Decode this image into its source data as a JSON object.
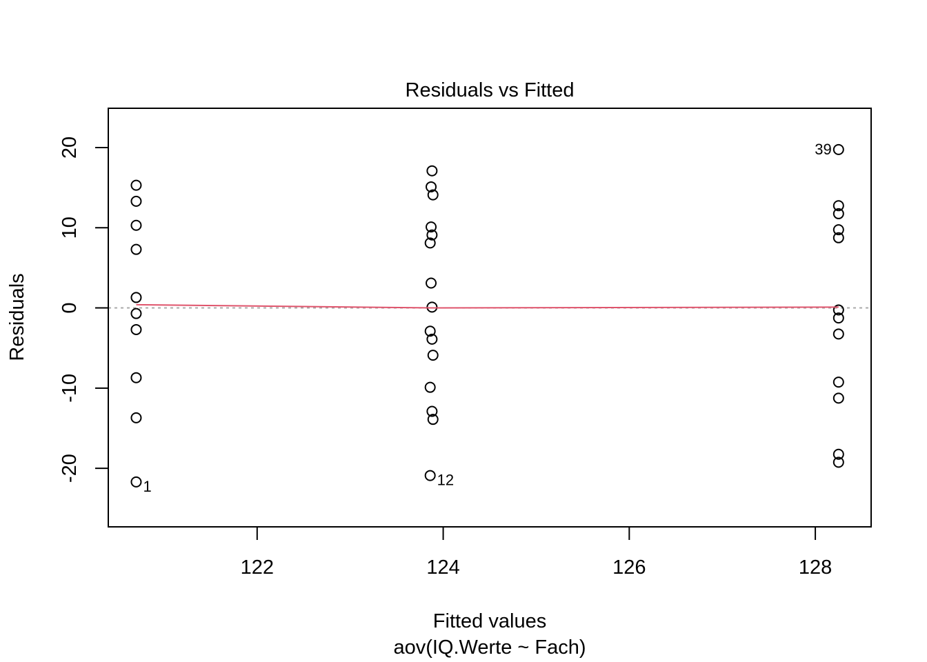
{
  "chart_data": {
    "type": "scatter",
    "title": "Residuals vs Fitted",
    "xlabel": "Fitted values",
    "subtitle": "aov(IQ.Werte ~ Fach)",
    "ylabel": "Residuals",
    "xlim": [
      120.4,
      128.6
    ],
    "ylim": [
      -27.3,
      24.9
    ],
    "xticks": [
      122,
      124,
      126,
      128
    ],
    "yticks": [
      -20,
      -10,
      0,
      10,
      20
    ],
    "grid": false,
    "reference_line_y": 0,
    "colors": {
      "points": "#000000",
      "smooth": "#DF536B",
      "refline": "#AAAAAA"
    },
    "points": [
      {
        "x": 120.7,
        "y": 15.3
      },
      {
        "x": 120.7,
        "y": 13.3
      },
      {
        "x": 120.7,
        "y": 10.3
      },
      {
        "x": 120.7,
        "y": 7.3
      },
      {
        "x": 120.7,
        "y": 1.3
      },
      {
        "x": 120.7,
        "y": -0.7
      },
      {
        "x": 120.7,
        "y": -2.7
      },
      {
        "x": 120.7,
        "y": -8.7
      },
      {
        "x": 120.7,
        "y": -13.7
      },
      {
        "x": 120.7,
        "y": -21.7,
        "label": "1"
      },
      {
        "x": 123.88,
        "y": 17.1
      },
      {
        "x": 123.87,
        "y": 15.1
      },
      {
        "x": 123.89,
        "y": 14.1
      },
      {
        "x": 123.87,
        "y": 10.1
      },
      {
        "x": 123.88,
        "y": 9.1
      },
      {
        "x": 123.86,
        "y": 8.1
      },
      {
        "x": 123.87,
        "y": 3.1
      },
      {
        "x": 123.88,
        "y": 0.1
      },
      {
        "x": 123.86,
        "y": -2.9
      },
      {
        "x": 123.88,
        "y": -3.9
      },
      {
        "x": 123.89,
        "y": -5.9
      },
      {
        "x": 123.86,
        "y": -9.9
      },
      {
        "x": 123.88,
        "y": -12.9
      },
      {
        "x": 123.89,
        "y": -13.9
      },
      {
        "x": 123.86,
        "y": -20.9,
        "label": "12"
      },
      {
        "x": 128.25,
        "y": 19.75,
        "label": "39"
      },
      {
        "x": 128.25,
        "y": 12.75
      },
      {
        "x": 128.25,
        "y": 11.75
      },
      {
        "x": 128.25,
        "y": 9.75
      },
      {
        "x": 128.25,
        "y": 8.75
      },
      {
        "x": 128.25,
        "y": -0.25
      },
      {
        "x": 128.25,
        "y": -1.25
      },
      {
        "x": 128.25,
        "y": -3.25
      },
      {
        "x": 128.25,
        "y": -9.25
      },
      {
        "x": 128.25,
        "y": -11.25
      },
      {
        "x": 128.25,
        "y": -18.25
      },
      {
        "x": 128.25,
        "y": -19.25
      }
    ],
    "smooth_line": [
      {
        "x": 120.7,
        "y": 0.4
      },
      {
        "x": 123.88,
        "y": 0.0
      },
      {
        "x": 128.25,
        "y": 0.1
      }
    ]
  }
}
